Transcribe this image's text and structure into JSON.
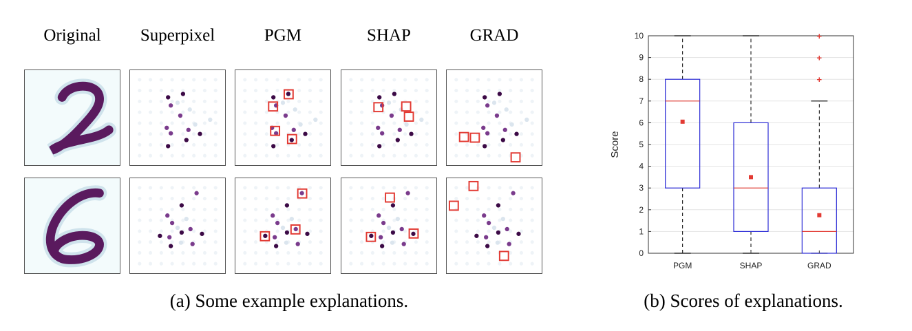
{
  "figure_a": {
    "columns": [
      "Original",
      "Superpixel",
      "PGM",
      "SHAP",
      "GRAD"
    ],
    "caption": "(a) Some example explanations."
  },
  "figure_b": {
    "caption": "(b) Scores of explanations."
  },
  "colors": {
    "digit": "#5a1a5e",
    "node_dark": "#3c0a46",
    "node_mid": "#7a3b8c",
    "node_faint": "#dbe5ee",
    "highlight": "#e23a33",
    "box": "#2b2bd6",
    "median": "#e23a33"
  },
  "chart_data": {
    "type": "box",
    "categories": [
      "PGM",
      "SHAP",
      "GRAD"
    ],
    "ylabel": "Score",
    "ylim": [
      0,
      10
    ],
    "yticks": [
      0,
      1,
      2,
      3,
      4,
      5,
      6,
      7,
      8,
      9,
      10
    ],
    "grid": true,
    "boxes": [
      {
        "name": "PGM",
        "whisker_low": 0,
        "q1": 3,
        "median": 7,
        "q3": 8,
        "whisker_high": 10,
        "mean": 6.05,
        "outliers": []
      },
      {
        "name": "SHAP",
        "whisker_low": 0,
        "q1": 1,
        "median": 3,
        "q3": 6,
        "whisker_high": 10,
        "mean": 3.5,
        "outliers": []
      },
      {
        "name": "GRAD",
        "whisker_low": 0,
        "q1": 0,
        "median": 1,
        "q3": 3,
        "whisker_high": 7,
        "mean": 1.75,
        "outliers": [
          8,
          9,
          10
        ]
      }
    ]
  }
}
